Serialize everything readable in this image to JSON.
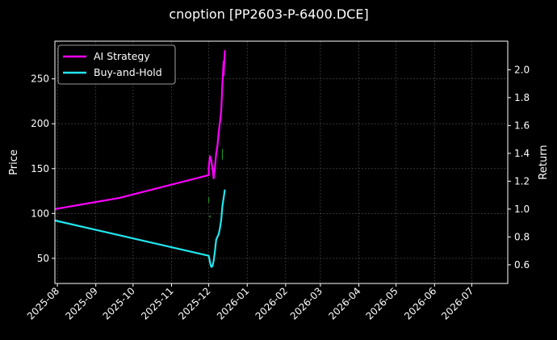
{
  "chart_data": {
    "type": "line",
    "title": "cnoption [PP2603-P-6400.DCE]",
    "xlabel": "",
    "ylabel": "Price",
    "y2label": "Return",
    "x_ticks": [
      "2025-08",
      "2025-09",
      "2025-10",
      "2025-11",
      "2025-12",
      "2026-01",
      "2026-02",
      "2026-03",
      "2026-04",
      "2026-05",
      "2026-06",
      "2026-07"
    ],
    "xlim": [
      "2025-07-30",
      "2026-07-30"
    ],
    "ylim": [
      22,
      292
    ],
    "y_ticks": [
      50,
      100,
      150,
      200,
      250
    ],
    "y2lim": [
      0.466,
      2.205
    ],
    "y2_ticks": [
      "0.6",
      "0.8",
      "1.0",
      "1.2",
      "1.4",
      "1.6",
      "1.8",
      "2.0"
    ],
    "grid": true,
    "legend_position": "top-left",
    "series": [
      {
        "name": "AI Strategy",
        "axis": "right",
        "color": "#ff00ff",
        "points": [
          [
            "2025-07-30",
            1.0
          ],
          [
            "2025-09-20",
            1.08
          ],
          [
            "2025-12-01",
            1.244
          ],
          [
            "2025-12-01",
            1.3
          ],
          [
            "2025-12-02",
            1.38
          ],
          [
            "2025-12-03",
            1.35
          ],
          [
            "2025-12-04",
            1.29
          ],
          [
            "2025-12-05",
            1.22
          ],
          [
            "2025-12-06",
            1.3
          ],
          [
            "2025-12-07",
            1.4
          ],
          [
            "2025-12-08",
            1.45
          ],
          [
            "2025-12-09",
            1.55
          ],
          [
            "2025-12-10",
            1.62
          ],
          [
            "2025-12-11",
            1.7
          ],
          [
            "2025-12-12",
            1.9
          ],
          [
            "2025-12-13",
            2.06
          ],
          [
            "2025-12-13",
            1.96
          ],
          [
            "2025-12-14",
            2.14
          ]
        ]
      },
      {
        "name": "Buy-and-Hold",
        "axis": "right",
        "color": "#22e6f0",
        "points": [
          [
            "2025-07-30",
            0.918
          ],
          [
            "2025-12-01",
            0.665
          ],
          [
            "2025-12-02",
            0.62
          ],
          [
            "2025-12-03",
            0.585
          ],
          [
            "2025-12-04",
            0.59
          ],
          [
            "2025-12-05",
            0.63
          ],
          [
            "2025-12-06",
            0.7
          ],
          [
            "2025-12-07",
            0.78
          ],
          [
            "2025-12-08",
            0.8
          ],
          [
            "2025-12-09",
            0.82
          ],
          [
            "2025-12-10",
            0.86
          ],
          [
            "2025-12-11",
            0.92
          ],
          [
            "2025-12-12",
            1.02
          ],
          [
            "2025-12-14",
            1.14
          ]
        ]
      }
    ],
    "annotations": [
      {
        "kind": "buy-marker",
        "color": "#1f8f1f",
        "x": "2025-12-01",
        "y": [
          112,
          118
        ]
      },
      {
        "kind": "buy-marker",
        "color": "#1f8f1f",
        "x": "2025-12-02",
        "y": [
          95,
          98
        ]
      },
      {
        "kind": "buy-marker",
        "color": "#1f8f1f",
        "x": "2025-12-12",
        "y": [
          160,
          172
        ]
      }
    ]
  }
}
